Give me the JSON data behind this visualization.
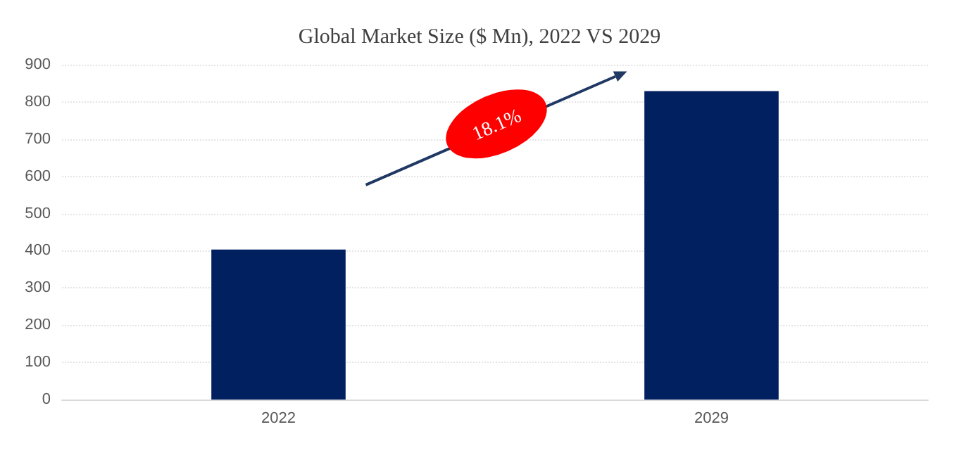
{
  "chart_data": {
    "type": "bar",
    "title": "Global Market Size ($ Mn), 2022 VS 2029",
    "categories": [
      "2022",
      "2029"
    ],
    "values": [
      403,
      829
    ],
    "color": "#002060",
    "ylim": [
      0,
      900
    ],
    "yticks": [
      0,
      100,
      200,
      300,
      400,
      500,
      600,
      700,
      800,
      900
    ],
    "grid": "y",
    "annotations": [
      "18.1%"
    ]
  }
}
